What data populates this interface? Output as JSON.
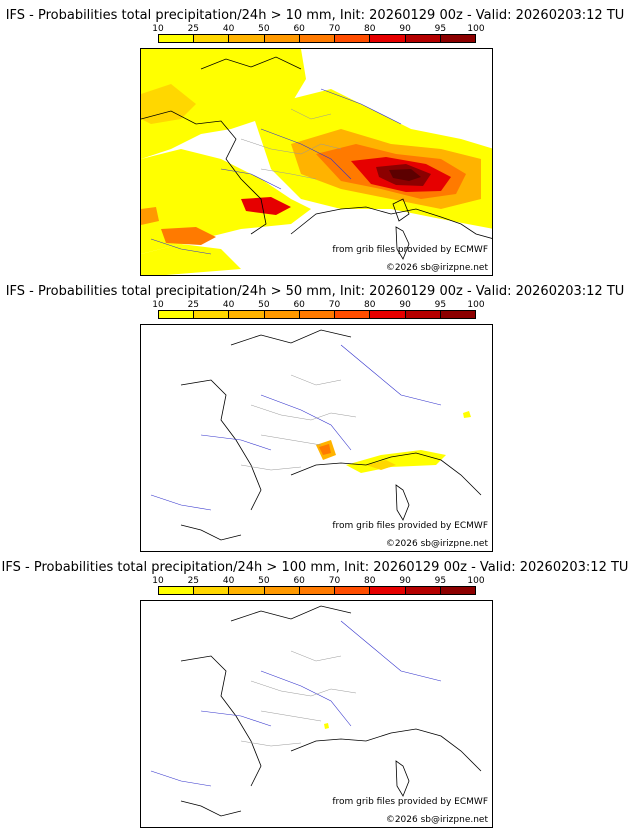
{
  "colors": [
    "#ffff00",
    "#ffd700",
    "#ffb300",
    "#ff9900",
    "#ff7a00",
    "#ff4d00",
    "#e60000",
    "#b40000",
    "#8c0000",
    "#5c0000"
  ],
  "scale_ticks": [
    "10",
    "25",
    "40",
    "50",
    "60",
    "70",
    "80",
    "90",
    "95",
    "100"
  ],
  "source_note": "from grib files provided by ECMWF",
  "copyright": "©2026 sb@irizpne.net",
  "panels": [
    {
      "title": "IFS - Probabilities total precipitation/24h > 10 mm, Init: 20260129 00z - Valid: 20260203:12 TU",
      "coverage": "widespread"
    },
    {
      "title": "IFS - Probabilities total precipitation/24h > 50 mm, Init: 20260129 00z - Valid: 20260203:12 TU",
      "coverage": "local"
    },
    {
      "title": "IFS - Probabilities total precipitation/24h > 100 mm, Init: 20260129 00z - Valid: 20260203:12 TU",
      "coverage": "minimal"
    }
  ]
}
